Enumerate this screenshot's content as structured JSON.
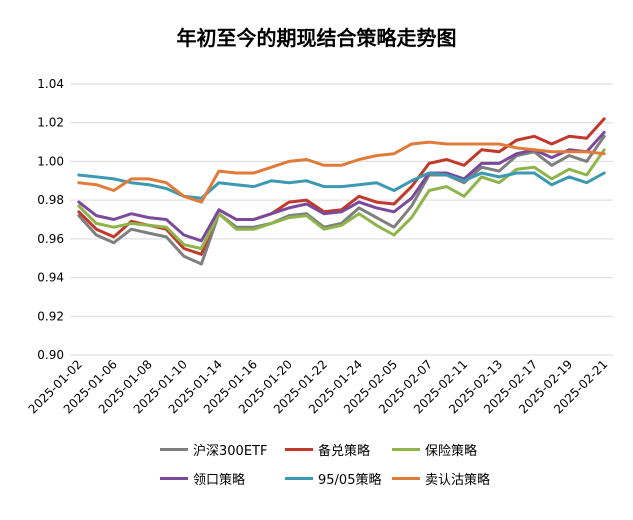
{
  "chart_data": {
    "type": "line",
    "title": "年初至今的期现结合策略走势图",
    "xlabel": "",
    "ylabel": "",
    "ylim": [
      0.9,
      1.04
    ],
    "yticks": [
      "0.90",
      "0.92",
      "0.94",
      "0.96",
      "0.98",
      "1.00",
      "1.02",
      "1.04"
    ],
    "grid": "horizontal",
    "legend_position": "bottom",
    "x": [
      "2025-01-02",
      "2025-01-03",
      "2025-01-06",
      "2025-01-07",
      "2025-01-08",
      "2025-01-09",
      "2025-01-10",
      "2025-01-13",
      "2025-01-14",
      "2025-01-15",
      "2025-01-16",
      "2025-01-17",
      "2025-01-20",
      "2025-01-21",
      "2025-01-22",
      "2025-01-23",
      "2025-01-24",
      "2025-01-27",
      "2025-02-05",
      "2025-02-06",
      "2025-02-07",
      "2025-02-10",
      "2025-02-11",
      "2025-02-12",
      "2025-02-13",
      "2025-02-14",
      "2025-02-17",
      "2025-02-18",
      "2025-02-19",
      "2025-02-20",
      "2025-02-21"
    ],
    "xtick_labels": [
      "2025-01-02",
      "2025-01-06",
      "2025-01-08",
      "2025-01-10",
      "2025-01-14",
      "2025-01-16",
      "2025-01-20",
      "2025-01-22",
      "2025-01-24",
      "2025-02-05",
      "2025-02-07",
      "2025-02-11",
      "2025-02-13",
      "2025-02-17",
      "2025-02-19",
      "2025-02-21"
    ],
    "series": [
      {
        "name": "沪深300ETF",
        "color": "#7f7f7f",
        "values": [
          0.972,
          0.962,
          0.958,
          0.965,
          0.963,
          0.961,
          0.951,
          0.947,
          0.973,
          0.966,
          0.966,
          0.968,
          0.972,
          0.973,
          0.966,
          0.968,
          0.976,
          0.971,
          0.966,
          0.977,
          0.993,
          0.993,
          0.989,
          0.997,
          0.995,
          1.003,
          1.005,
          0.998,
          1.003,
          1.0,
          1.013
        ]
      },
      {
        "name": "备兑策略",
        "color": "#c0392b",
        "values": [
          0.974,
          0.965,
          0.961,
          0.969,
          0.967,
          0.965,
          0.955,
          0.952,
          0.975,
          0.97,
          0.97,
          0.973,
          0.979,
          0.98,
          0.974,
          0.975,
          0.982,
          0.979,
          0.978,
          0.987,
          0.999,
          1.001,
          0.998,
          1.006,
          1.005,
          1.011,
          1.013,
          1.009,
          1.013,
          1.012,
          1.022
        ]
      },
      {
        "name": "保险策略",
        "color": "#8fb44a",
        "values": [
          0.977,
          0.968,
          0.966,
          0.968,
          0.967,
          0.966,
          0.957,
          0.955,
          0.973,
          0.965,
          0.965,
          0.968,
          0.971,
          0.972,
          0.965,
          0.967,
          0.973,
          0.967,
          0.962,
          0.971,
          0.985,
          0.987,
          0.982,
          0.992,
          0.989,
          0.996,
          0.997,
          0.991,
          0.996,
          0.993,
          1.006
        ]
      },
      {
        "name": "领口策略",
        "color": "#7b4a9b",
        "values": [
          0.979,
          0.972,
          0.97,
          0.973,
          0.971,
          0.97,
          0.962,
          0.959,
          0.975,
          0.97,
          0.97,
          0.973,
          0.976,
          0.978,
          0.973,
          0.974,
          0.979,
          0.976,
          0.974,
          0.981,
          0.994,
          0.994,
          0.991,
          0.999,
          0.999,
          1.004,
          1.006,
          1.002,
          1.006,
          1.005,
          1.015
        ]
      },
      {
        "name": "95/05策略",
        "color": "#3b9ab2",
        "values": [
          0.993,
          0.992,
          0.991,
          0.989,
          0.988,
          0.986,
          0.982,
          0.981,
          0.989,
          0.988,
          0.987,
          0.99,
          0.989,
          0.99,
          0.987,
          0.987,
          0.988,
          0.989,
          0.985,
          0.99,
          0.994,
          0.993,
          0.99,
          0.994,
          0.992,
          0.994,
          0.994,
          0.988,
          0.992,
          0.989,
          0.994
        ]
      },
      {
        "name": "卖认沽策略",
        "color": "#e07b39",
        "values": [
          0.989,
          0.988,
          0.985,
          0.991,
          0.991,
          0.989,
          0.982,
          0.979,
          0.995,
          0.994,
          0.994,
          0.997,
          1.0,
          1.001,
          0.998,
          0.998,
          1.001,
          1.003,
          1.004,
          1.009,
          1.01,
          1.009,
          1.009,
          1.009,
          1.009,
          1.007,
          1.006,
          1.005,
          1.005,
          1.005,
          1.004
        ]
      }
    ]
  }
}
